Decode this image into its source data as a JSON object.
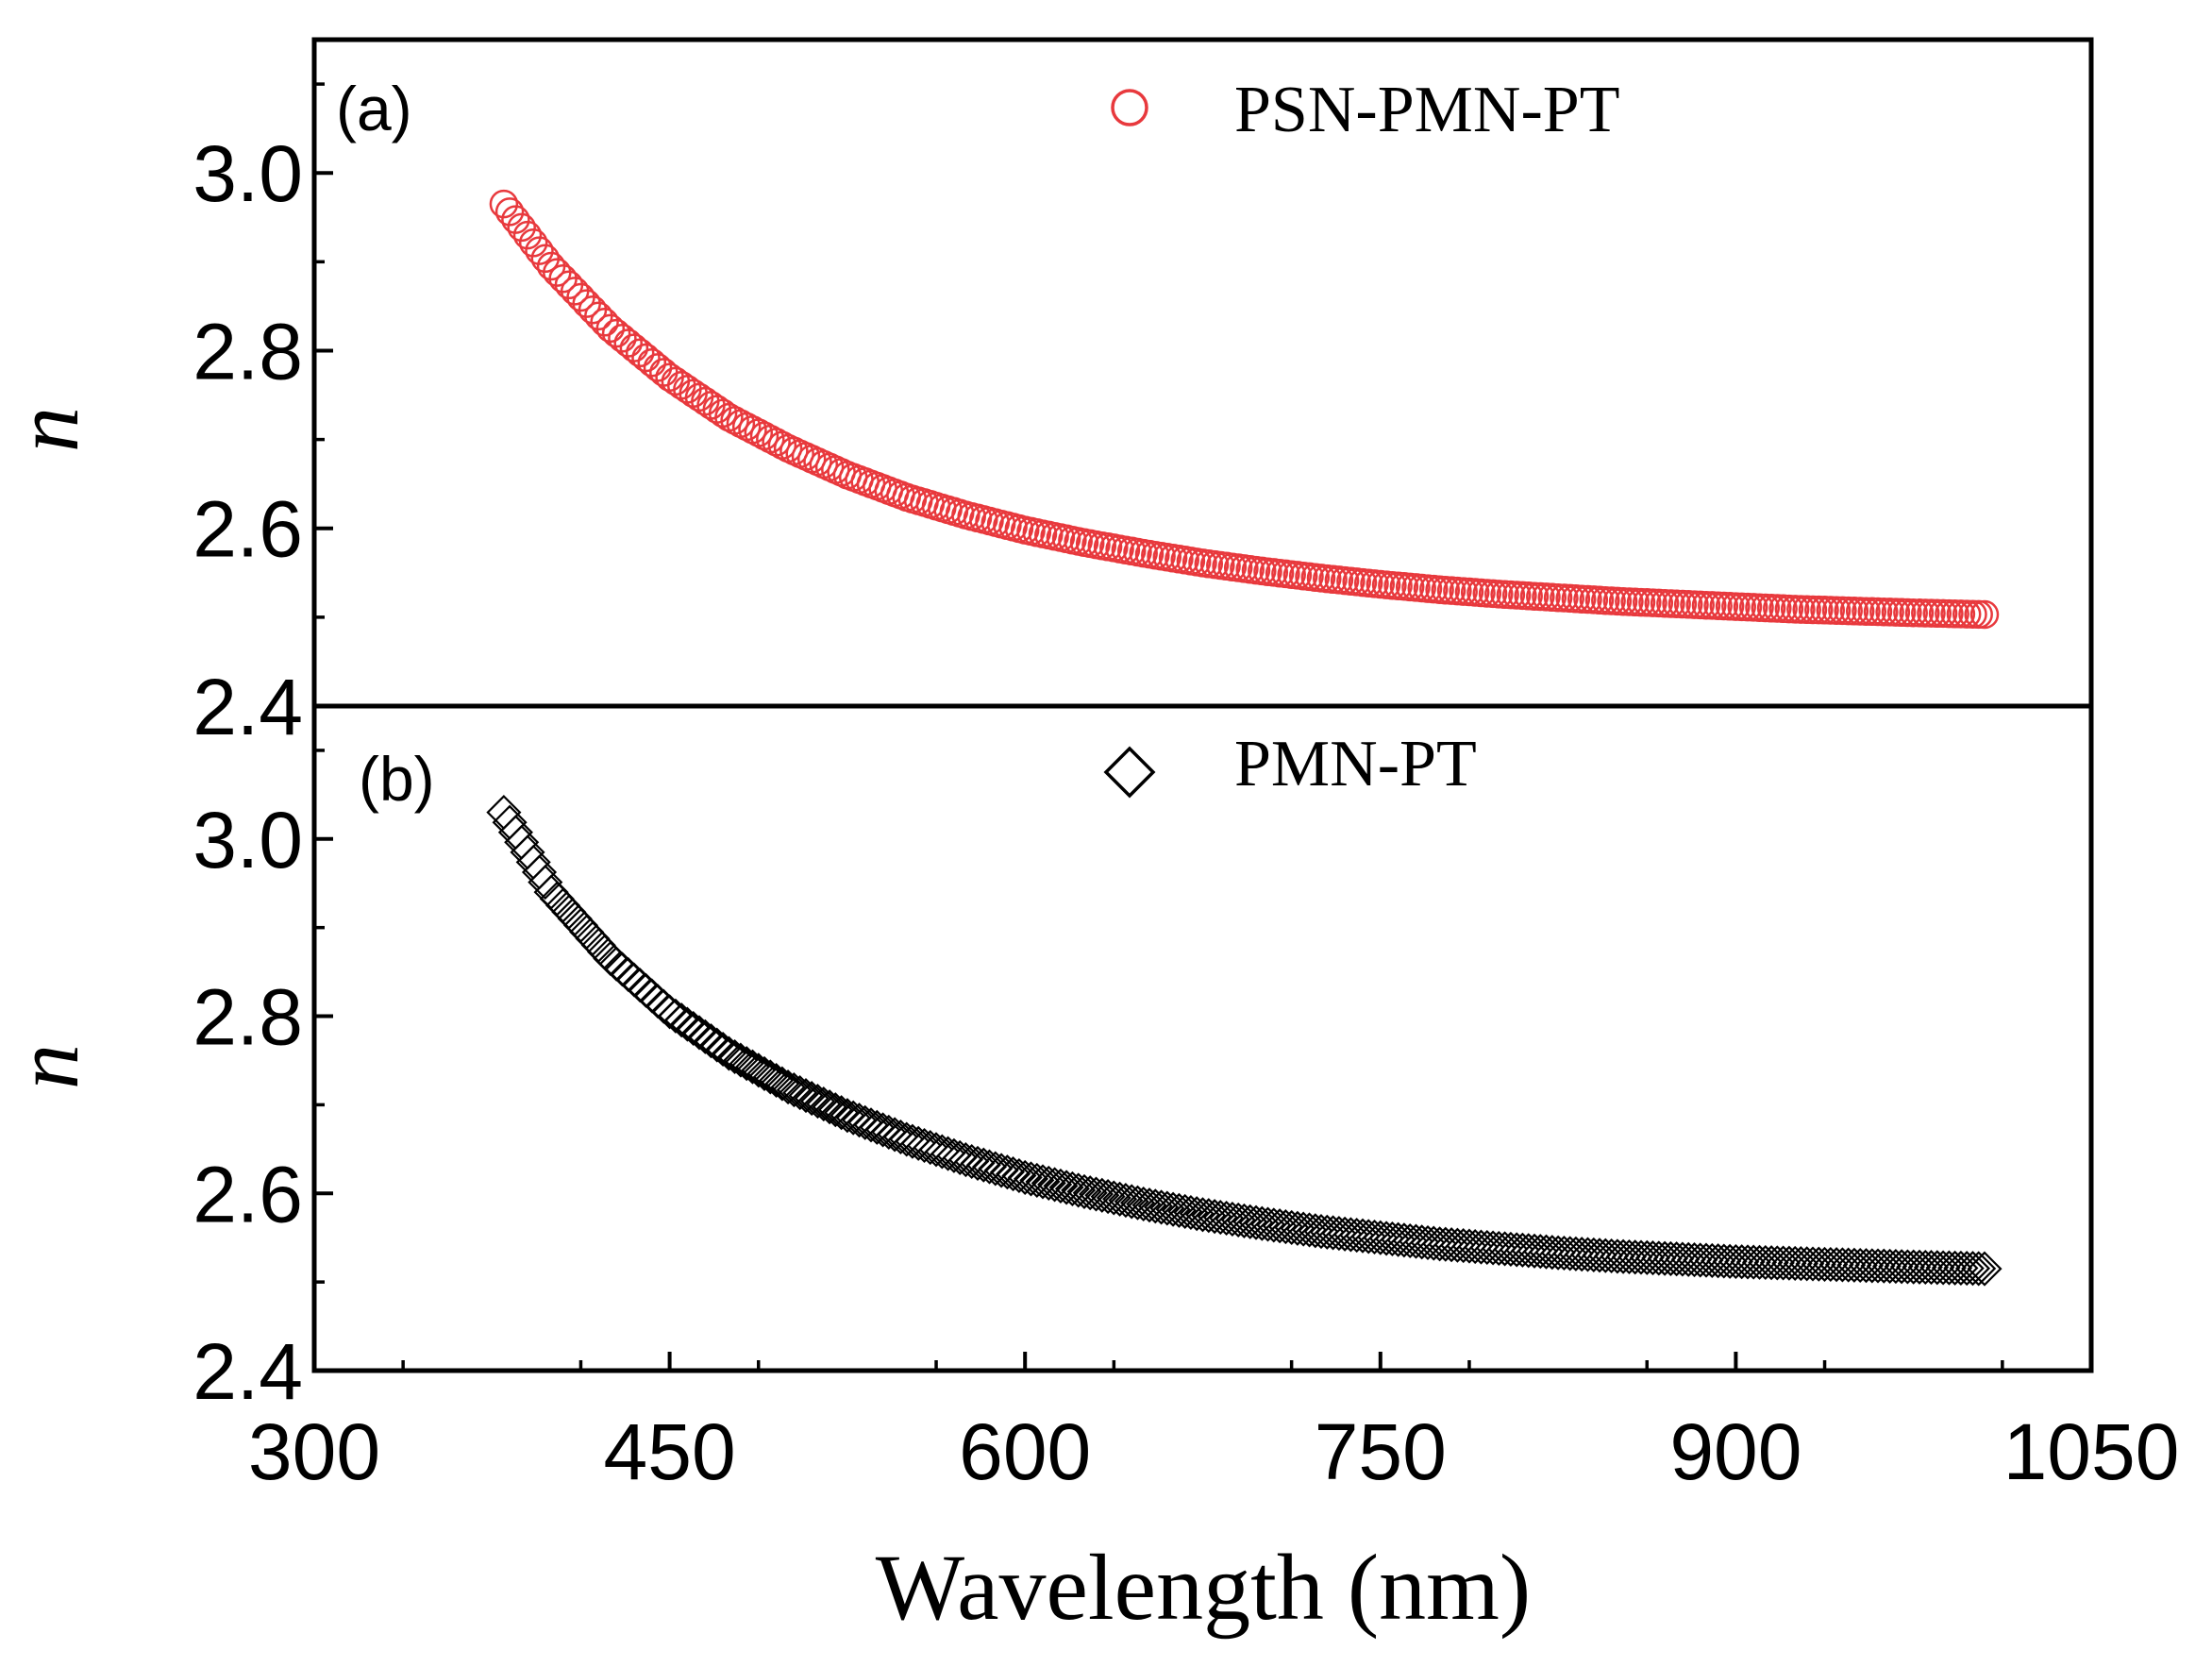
{
  "chart_data": [
    {
      "type": "scatter",
      "panel": "(a)",
      "xlabel": "Wavelength (nm)",
      "ylabel": "n",
      "xlim": [
        300,
        1050
      ],
      "ylim": [
        2.4,
        3.15
      ],
      "x_ticks": [
        "300",
        "450",
        "600",
        "750",
        "900",
        "1050"
      ],
      "y_ticks": [
        "2.4",
        "2.6",
        "2.8",
        "3.0"
      ],
      "legend_position": "top-right",
      "series": [
        {
          "name": "PSN-PMN-PT",
          "marker": "circle",
          "color": "#e8393d",
          "x": [
            380,
            400,
            425,
            450,
            475,
            500,
            525,
            550,
            575,
            600,
            625,
            650,
            675,
            700,
            725,
            750,
            775,
            800,
            825,
            850,
            875,
            900,
            925,
            950,
            975,
            1005
          ],
          "y": [
            2.965,
            2.895,
            2.825,
            2.77,
            2.725,
            2.69,
            2.66,
            2.635,
            2.615,
            2.598,
            2.584,
            2.572,
            2.561,
            2.552,
            2.544,
            2.537,
            2.531,
            2.526,
            2.522,
            2.518,
            2.515,
            2.512,
            2.509,
            2.507,
            2.505,
            2.503
          ]
        }
      ]
    },
    {
      "type": "scatter",
      "panel": "(b)",
      "xlabel": "Wavelength (nm)",
      "ylabel": "n",
      "xlim": [
        300,
        1050
      ],
      "ylim": [
        2.4,
        3.15
      ],
      "x_ticks": [
        "300",
        "450",
        "600",
        "750",
        "900",
        "1050"
      ],
      "y_ticks": [
        "2.4",
        "2.6",
        "2.8",
        "3.0"
      ],
      "legend_position": "top-center",
      "series": [
        {
          "name": "PMN-PT",
          "marker": "diamond",
          "color": "#000000",
          "x": [
            380,
            400,
            425,
            450,
            475,
            500,
            525,
            550,
            575,
            600,
            625,
            650,
            675,
            700,
            725,
            750,
            775,
            800,
            825,
            850,
            875,
            900,
            925,
            950,
            975,
            1005
          ],
          "y": [
            3.03,
            2.94,
            2.865,
            2.805,
            2.758,
            2.72,
            2.688,
            2.661,
            2.638,
            2.618,
            2.602,
            2.588,
            2.576,
            2.566,
            2.557,
            2.55,
            2.543,
            2.538,
            2.533,
            2.529,
            2.526,
            2.523,
            2.521,
            2.519,
            2.517,
            2.515
          ]
        }
      ]
    }
  ]
}
